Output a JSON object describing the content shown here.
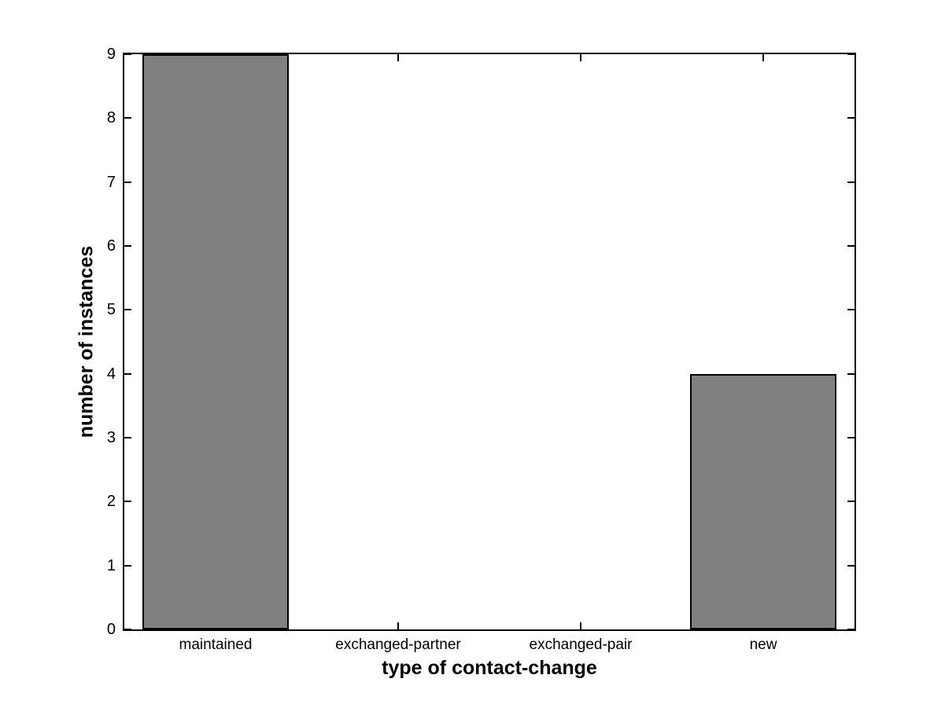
{
  "chart_data": {
    "type": "bar",
    "categories": [
      "maintained",
      "exchanged-partner",
      "exchanged-pair",
      "new"
    ],
    "values": [
      9,
      0,
      0,
      4
    ],
    "title": "",
    "xlabel": "type of contact-change",
    "ylabel": "number of instances",
    "ylim": [
      0,
      9
    ],
    "yticks": [
      0,
      1,
      2,
      3,
      4,
      5,
      6,
      7,
      8,
      9
    ],
    "bar_width_fraction": 0.8,
    "bar_color": "#808080",
    "bar_edge_color": "#000000",
    "axis_color": "#000000",
    "background_color": "#ffffff",
    "grid": false,
    "legend": null,
    "tick_direction": "in",
    "box": true
  }
}
